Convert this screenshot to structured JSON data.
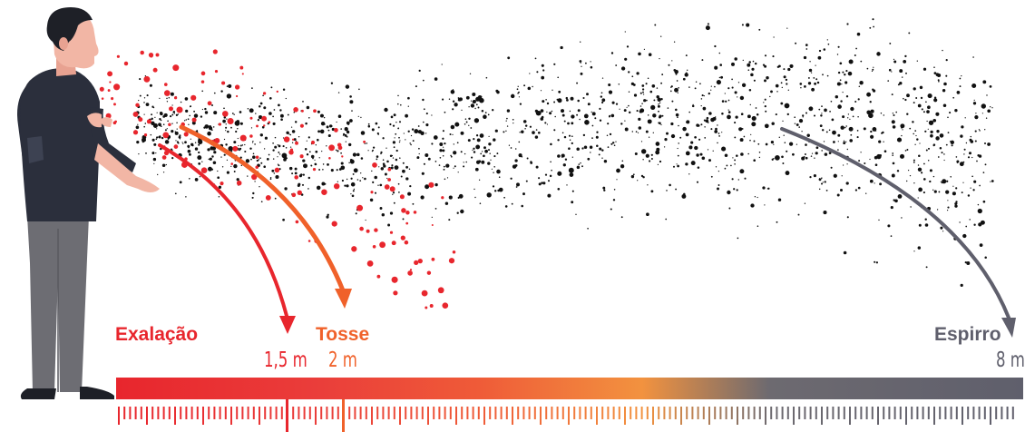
{
  "colors": {
    "exhale": "#e8262d",
    "cough": "#f0612a",
    "sneeze": "#5f5f6c",
    "droplet": "#111111",
    "skin": "#f2b6a5",
    "shirt": "#2b2f3c",
    "pants": "#6d6d73",
    "hair": "#1e2027"
  },
  "icons": {
    "person": "person-coughing-icon",
    "arrow": "curved-arrow-icon"
  },
  "legend": {
    "exhale": {
      "label": "Exalação",
      "distance": "1,5 m",
      "distance_m": 1.5
    },
    "cough": {
      "label": "Tosse",
      "distance": "2 m",
      "distance_m": 2
    },
    "sneeze": {
      "label": "Espirro",
      "distance": "8 m",
      "distance_m": 8
    }
  }
}
